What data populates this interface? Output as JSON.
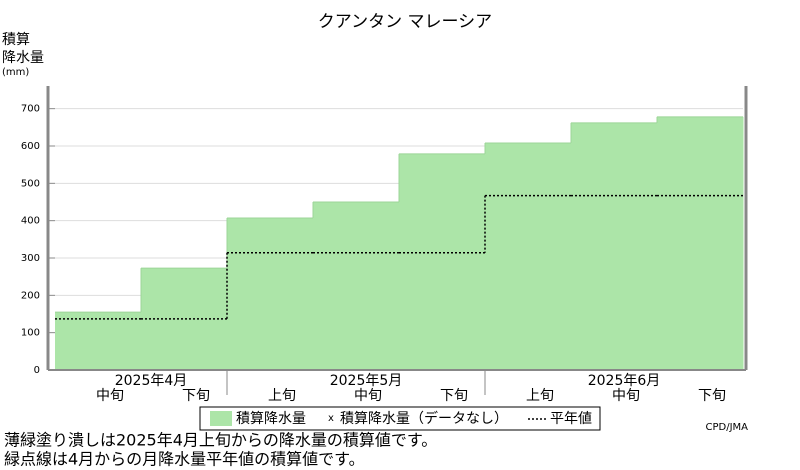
{
  "chart_data": {
    "type": "step-area",
    "title": "クアンタン マレーシア",
    "y_label": [
      "積算",
      "降水量",
      "(mm)"
    ],
    "months": [
      "2025年4月",
      "2025年5月",
      "2025年6月"
    ],
    "categories": [
      "中旬",
      "下旬",
      "上旬",
      "中旬",
      "下旬",
      "上旬",
      "中旬",
      "下旬"
    ],
    "month_of_category": [
      0,
      0,
      1,
      1,
      1,
      2,
      2,
      2
    ],
    "series": [
      {
        "name": "積算降水量",
        "color": "#ace5a8",
        "values": [
          155,
          273,
          407,
          450,
          579,
          608,
          662,
          678
        ]
      },
      {
        "name": "平年値",
        "color": "#000000",
        "values": [
          137,
          137,
          314,
          314,
          314,
          467,
          467,
          467
        ]
      }
    ],
    "no_data_marker": "x",
    "no_data_label": "積算降水量（データなし）",
    "ylim": [
      0,
      750
    ],
    "yticks": [
      0,
      100,
      200,
      300,
      400,
      500,
      600,
      700
    ],
    "grid": true,
    "credit": "CPD/JMA",
    "notes": [
      "薄緑塗り潰しは2025年4月上旬からの降水量の積算値です。",
      "緑点線は4月からの月降水量平年値の積算値です。"
    ]
  }
}
